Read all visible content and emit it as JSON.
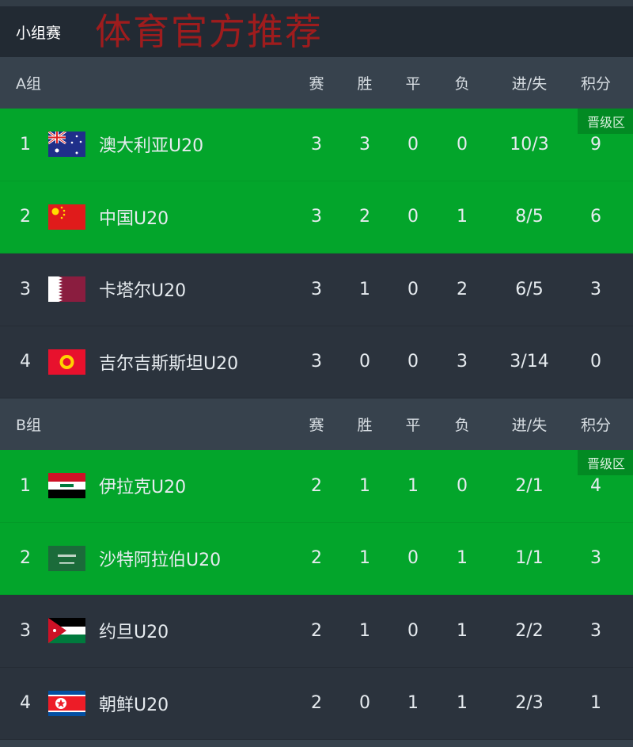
{
  "overlay_text": "体育官方推荐",
  "stage_title": "小组赛",
  "columns": [
    "赛",
    "胜",
    "平",
    "负",
    "进/失",
    "积分"
  ],
  "qualify_label": "晋级区",
  "colors": {
    "qualify": "#03a52b",
    "row": "#2b333d",
    "header": "#37424d",
    "stage": "#222a33"
  },
  "groups": [
    {
      "name": "A组",
      "teams": [
        {
          "rank": "1",
          "flag": "australia-flag",
          "name": "澳大利亚U20",
          "played": "3",
          "won": "3",
          "drawn": "0",
          "lost": "0",
          "gf_ga": "10/3",
          "points": "9",
          "qualified": true
        },
        {
          "rank": "2",
          "flag": "china-flag",
          "name": "中国U20",
          "played": "3",
          "won": "2",
          "drawn": "0",
          "lost": "1",
          "gf_ga": "8/5",
          "points": "6",
          "qualified": true
        },
        {
          "rank": "3",
          "flag": "qatar-flag",
          "name": "卡塔尔U20",
          "played": "3",
          "won": "1",
          "drawn": "0",
          "lost": "2",
          "gf_ga": "6/5",
          "points": "3",
          "qualified": false
        },
        {
          "rank": "4",
          "flag": "kyrgyzstan-flag",
          "name": "吉尔吉斯斯坦U20",
          "played": "3",
          "won": "0",
          "drawn": "0",
          "lost": "3",
          "gf_ga": "3/14",
          "points": "0",
          "qualified": false
        }
      ]
    },
    {
      "name": "B组",
      "teams": [
        {
          "rank": "1",
          "flag": "iraq-flag",
          "name": "伊拉克U20",
          "played": "2",
          "won": "1",
          "drawn": "1",
          "lost": "0",
          "gf_ga": "2/1",
          "points": "4",
          "qualified": true
        },
        {
          "rank": "2",
          "flag": "saudi-arabia-flag",
          "name": "沙特阿拉伯U20",
          "played": "2",
          "won": "1",
          "drawn": "0",
          "lost": "1",
          "gf_ga": "1/1",
          "points": "3",
          "qualified": true
        },
        {
          "rank": "3",
          "flag": "jordan-flag",
          "name": "约旦U20",
          "played": "2",
          "won": "1",
          "drawn": "0",
          "lost": "1",
          "gf_ga": "2/2",
          "points": "3",
          "qualified": false
        },
        {
          "rank": "4",
          "flag": "north-korea-flag",
          "name": "朝鲜U20",
          "played": "2",
          "won": "0",
          "drawn": "1",
          "lost": "1",
          "gf_ga": "2/3",
          "points": "1",
          "qualified": false
        }
      ]
    }
  ]
}
